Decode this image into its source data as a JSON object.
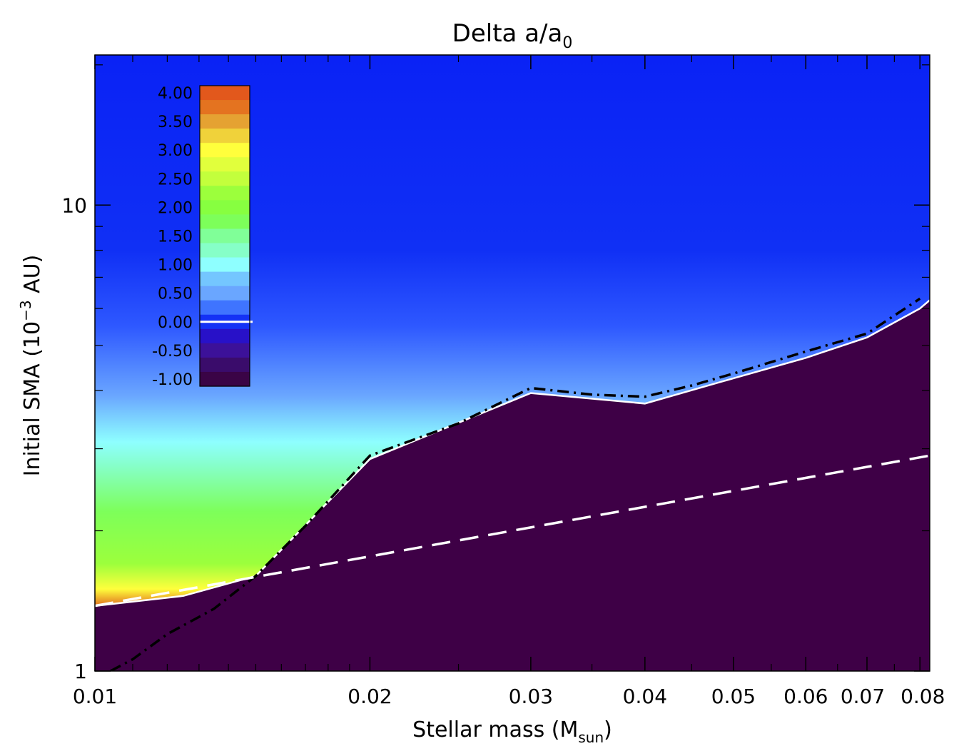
{
  "chart_data": {
    "type": "heatmap",
    "title": {
      "main": "Delta a/a",
      "subscript": "0"
    },
    "xlabel": {
      "main": "Stellar mass (M",
      "subscript": "sun",
      "suffix": ")"
    },
    "ylabel": {
      "main": "Initial SMA (10",
      "superscript": "−3",
      "suffix": " AU)"
    },
    "x_scale": "log",
    "y_scale": "log",
    "xlim": [
      0.01,
      0.082
    ],
    "ylim": [
      1.0,
      21.0
    ],
    "x_ticks": [
      {
        "value": 0.01,
        "label": "0.01"
      },
      {
        "value": 0.02,
        "label": "0.02"
      },
      {
        "value": 0.03,
        "label": "0.03"
      },
      {
        "value": 0.04,
        "label": "0.04"
      },
      {
        "value": 0.05,
        "label": "0.05"
      },
      {
        "value": 0.06,
        "label": "0.06"
      },
      {
        "value": 0.07,
        "label": "0.07"
      },
      {
        "value": 0.08,
        "label": "0.08"
      }
    ],
    "y_ticks": [
      {
        "value": 1,
        "label": "1"
      },
      {
        "value": 10,
        "label": "10"
      }
    ],
    "colorbar": {
      "levels": [
        {
          "label": "4.00",
          "color": "#e2581c"
        },
        {
          "label": "",
          "color": "#e47320"
        },
        {
          "label": "3.50",
          "color": "#e5a232"
        },
        {
          "label": "",
          "color": "#f0d23a"
        },
        {
          "label": "3.00",
          "color": "#ffff3c"
        },
        {
          "label": "",
          "color": "#e1ff3c"
        },
        {
          "label": "2.50",
          "color": "#c3ff3c"
        },
        {
          "label": "",
          "color": "#9cff3c"
        },
        {
          "label": "2.00",
          "color": "#87ff40"
        },
        {
          "label": "",
          "color": "#7dff5a"
        },
        {
          "label": "1.50",
          "color": "#80ff98"
        },
        {
          "label": "",
          "color": "#86ffc8"
        },
        {
          "label": "1.00",
          "color": "#8effff"
        },
        {
          "label": "",
          "color": "#74c6ff"
        },
        {
          "label": "0.50",
          "color": "#6aa6ff"
        },
        {
          "label": "",
          "color": "#3f74ff"
        },
        {
          "label": "0.00",
          "color": "#1432f5"
        },
        {
          "label": "",
          "color": "#2811c8"
        },
        {
          "label": "-0.50",
          "color": "#3c1199"
        },
        {
          "label": "",
          "color": "#3a0c6b"
        },
        {
          "label": "-1.00",
          "color": "#3a0446"
        }
      ],
      "zero_line_color": "#ffffff"
    },
    "colors": {
      "low_region": "#3e0046",
      "background_field": "#0a22f5",
      "dashed_line": "#ffffff",
      "dashdot_line": "#000000",
      "boundary_line": "#ffffff"
    },
    "boundary": {
      "x": [
        0.01,
        0.0125,
        0.015,
        0.02,
        0.03,
        0.04,
        0.05,
        0.06,
        0.07,
        0.08,
        0.082
      ],
      "y": [
        1.38,
        1.45,
        1.6,
        2.85,
        3.95,
        3.75,
        4.25,
        4.7,
        5.2,
        6.0,
        6.25
      ]
    },
    "dashdot_curve": {
      "x": [
        0.0104,
        0.011,
        0.012,
        0.0135,
        0.015,
        0.017,
        0.02,
        0.025,
        0.03,
        0.035,
        0.04,
        0.045,
        0.05,
        0.06,
        0.07,
        0.08
      ],
      "y": [
        1.0,
        1.06,
        1.2,
        1.36,
        1.6,
        2.05,
        2.9,
        3.4,
        4.05,
        3.92,
        3.88,
        4.1,
        4.35,
        4.85,
        5.3,
        6.3
      ]
    },
    "dashed_curve": {
      "x": [
        0.01,
        0.082
      ],
      "y": [
        1.38,
        2.9
      ]
    },
    "field_stops": [
      {
        "y": 1.38,
        "color": "#e07020"
      },
      {
        "y": 1.5,
        "color": "#ffff3c"
      },
      {
        "y": 1.7,
        "color": "#9cff3c"
      },
      {
        "y": 2.2,
        "color": "#7dff5a"
      },
      {
        "y": 2.75,
        "color": "#86ffc8"
      },
      {
        "y": 3.1,
        "color": "#8effff"
      },
      {
        "y": 3.9,
        "color": "#6aa6ff"
      },
      {
        "y": 5.5,
        "color": "#2e58ff"
      },
      {
        "y": 8.0,
        "color": "#1030f5"
      },
      {
        "y": 21.0,
        "color": "#0a22f5"
      }
    ]
  }
}
